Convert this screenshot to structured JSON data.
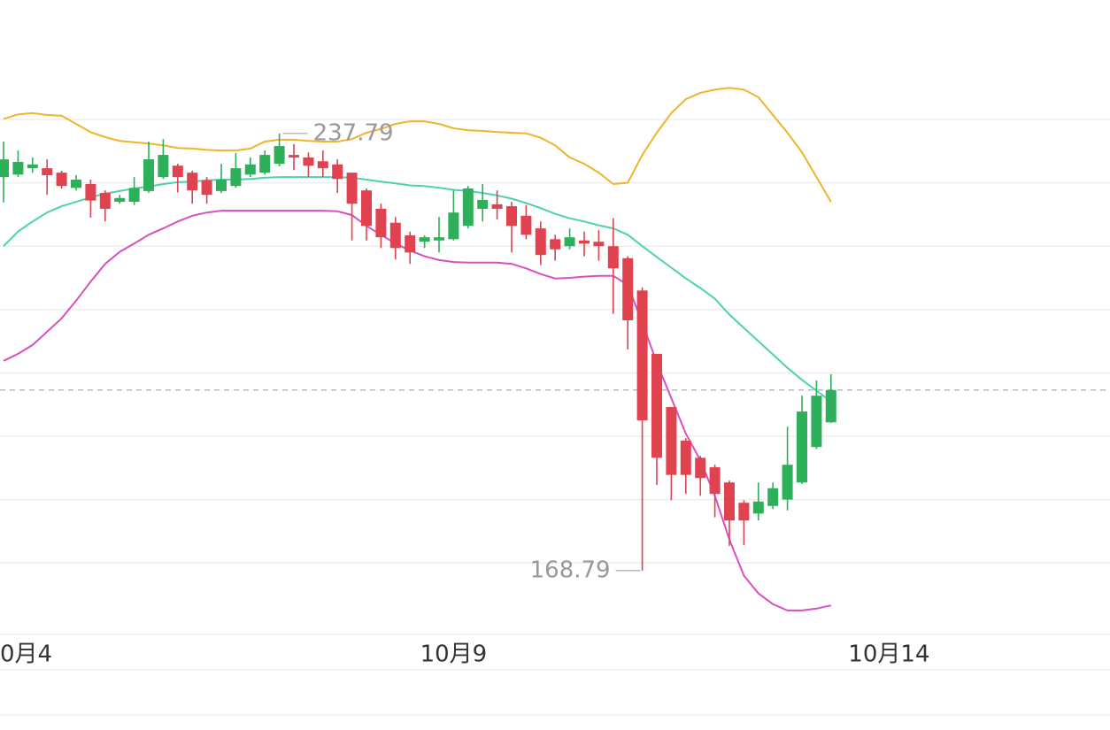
{
  "chart_data": {
    "type": "candlestick",
    "up_color": "#2eaf5a",
    "down_color": "#e0424f",
    "open": [
      230.9,
      231.3,
      232.3,
      232.3,
      231.6,
      229.2,
      229.8,
      228.4,
      227.0,
      227.0,
      228.7,
      230.9,
      232.7,
      231.6,
      230.4,
      228.7,
      229.5,
      231.3,
      231.6,
      233.0,
      234.4,
      234.0,
      233.4,
      232.9,
      231.6,
      228.8,
      225.9,
      223.7,
      221.7,
      220.7,
      220.9,
      221.1,
      223.2,
      225.9,
      226.6,
      226.3,
      224.8,
      222.8,
      221.1,
      220.0,
      220.9,
      220.7,
      220.0,
      218.1,
      213.0,
      203.0,
      194.6,
      189.3,
      186.6,
      185.1,
      182.7,
      179.5,
      177.8,
      179.0,
      180.0,
      182.7,
      188.3,
      192.2
    ],
    "high": [
      236.5,
      235.1,
      234.0,
      233.7,
      231.9,
      231.2,
      230.5,
      228.8,
      228.1,
      230.9,
      236.5,
      236.9,
      233.0,
      231.9,
      230.9,
      233.0,
      234.7,
      234.0,
      235.1,
      237.79,
      236.1,
      234.8,
      235.1,
      233.7,
      231.6,
      229.1,
      226.7,
      224.6,
      222.3,
      221.7,
      224.6,
      228.8,
      229.5,
      229.8,
      228.8,
      227.0,
      226.5,
      223.9,
      221.8,
      222.8,
      222.3,
      222.5,
      224.4,
      218.4,
      213.5,
      203.0,
      194.6,
      189.7,
      186.9,
      185.5,
      183.0,
      179.9,
      182.7,
      182.7,
      191.5,
      196.4,
      198.8,
      199.8
    ],
    "low": [
      226.9,
      230.9,
      231.6,
      228.1,
      229.1,
      228.8,
      224.5,
      223.9,
      226.7,
      226.5,
      228.4,
      230.6,
      228.5,
      226.7,
      226.7,
      228.4,
      229.2,
      230.9,
      231.3,
      232.6,
      232.0,
      230.9,
      230.9,
      228.4,
      220.9,
      220.9,
      219.7,
      217.9,
      217.2,
      219.7,
      219.0,
      220.9,
      222.8,
      223.9,
      224.2,
      219.0,
      221.1,
      217.0,
      217.7,
      219.5,
      218.4,
      217.7,
      209.3,
      203.7,
      168.79,
      182.3,
      179.9,
      180.9,
      180.6,
      177.2,
      172.7,
      172.8,
      176.7,
      178.5,
      178.3,
      182.5,
      188.0,
      192.1
    ],
    "close": [
      233.7,
      233.3,
      232.9,
      231.2,
      229.5,
      230.5,
      227.2,
      225.9,
      227.6,
      229.2,
      233.7,
      234.4,
      230.9,
      228.8,
      228.1,
      230.5,
      232.3,
      232.9,
      234.4,
      235.8,
      234.0,
      232.7,
      232.3,
      230.6,
      226.7,
      223.2,
      221.4,
      219.7,
      219.0,
      221.4,
      221.4,
      225.3,
      229.1,
      227.3,
      225.9,
      223.2,
      221.8,
      218.6,
      219.5,
      221.4,
      220.4,
      220.0,
      216.5,
      208.3,
      192.5,
      186.6,
      183.9,
      183.9,
      183.4,
      180.9,
      176.7,
      176.7,
      179.7,
      181.8,
      185.5,
      193.9,
      196.4,
      197.3
    ],
    "bands": [
      {
        "color": "#f0b429",
        "values": [
          240.1,
          240.8,
          241.0,
          240.7,
          240.6,
          239.3,
          238.0,
          237.2,
          236.6,
          236.4,
          236.2,
          235.9,
          235.5,
          235.4,
          235.2,
          235.1,
          235.1,
          235.4,
          236.5,
          236.8,
          236.8,
          236.6,
          236.5,
          236.5,
          236.9,
          237.9,
          238.5,
          239.3,
          239.7,
          239.7,
          239.3,
          238.6,
          238.3,
          238.2,
          238.0,
          237.9,
          237.8,
          237.1,
          235.9,
          234.0,
          233.0,
          231.6,
          229.8,
          230.0,
          234.4,
          237.9,
          241.0,
          243.2,
          244.2,
          244.7,
          245.0,
          244.7,
          243.5,
          240.7,
          237.9,
          234.8,
          230.9,
          227.0
        ]
      },
      {
        "color": "#4fd1b0",
        "values": [
          220.0,
          222.3,
          223.9,
          225.3,
          226.3,
          227.0,
          227.7,
          228.3,
          228.7,
          229.1,
          229.4,
          229.8,
          230.1,
          230.2,
          230.4,
          230.5,
          230.5,
          230.6,
          230.8,
          230.9,
          230.9,
          230.9,
          230.9,
          230.9,
          230.8,
          230.5,
          230.2,
          229.9,
          229.6,
          229.5,
          229.2,
          228.9,
          228.7,
          228.4,
          228.0,
          227.5,
          226.8,
          226.0,
          225.1,
          224.4,
          223.9,
          223.3,
          222.8,
          221.8,
          220.0,
          218.3,
          216.6,
          214.9,
          213.4,
          211.7,
          209.2,
          207.1,
          205.0,
          202.9,
          200.8,
          198.9,
          197.2,
          195.5
        ]
      },
      {
        "color": "#d94fc0",
        "values": [
          201.9,
          203.0,
          204.4,
          206.5,
          208.6,
          211.4,
          214.4,
          217.2,
          219.1,
          220.4,
          221.8,
          222.8,
          223.9,
          224.8,
          225.3,
          225.6,
          225.6,
          225.6,
          225.6,
          225.6,
          225.6,
          225.6,
          225.6,
          225.5,
          224.9,
          223.2,
          221.8,
          220.4,
          219.3,
          218.4,
          217.8,
          217.5,
          217.4,
          217.4,
          217.4,
          217.2,
          216.5,
          215.6,
          214.9,
          215.0,
          215.2,
          215.3,
          215.3,
          213.9,
          207.9,
          201.6,
          196.0,
          190.4,
          186.2,
          180.6,
          173.7,
          168.0,
          165.2,
          163.5,
          162.5,
          162.5,
          162.8,
          163.3
        ]
      }
    ],
    "last_price": 197.3,
    "max_index": 19,
    "min_index": 44,
    "grid_values": [
      240,
      230,
      220,
      210,
      200,
      190,
      180,
      170
    ],
    "xlim": [
      -0.244,
      76.22
    ],
    "ylim": [
      158.72,
      258.85
    ],
    "xticks": [
      {
        "value": 1,
        "label": "0月4"
      },
      {
        "value": 31,
        "label": "10月9"
      },
      {
        "value": 61,
        "label": "10月14"
      }
    ]
  }
}
